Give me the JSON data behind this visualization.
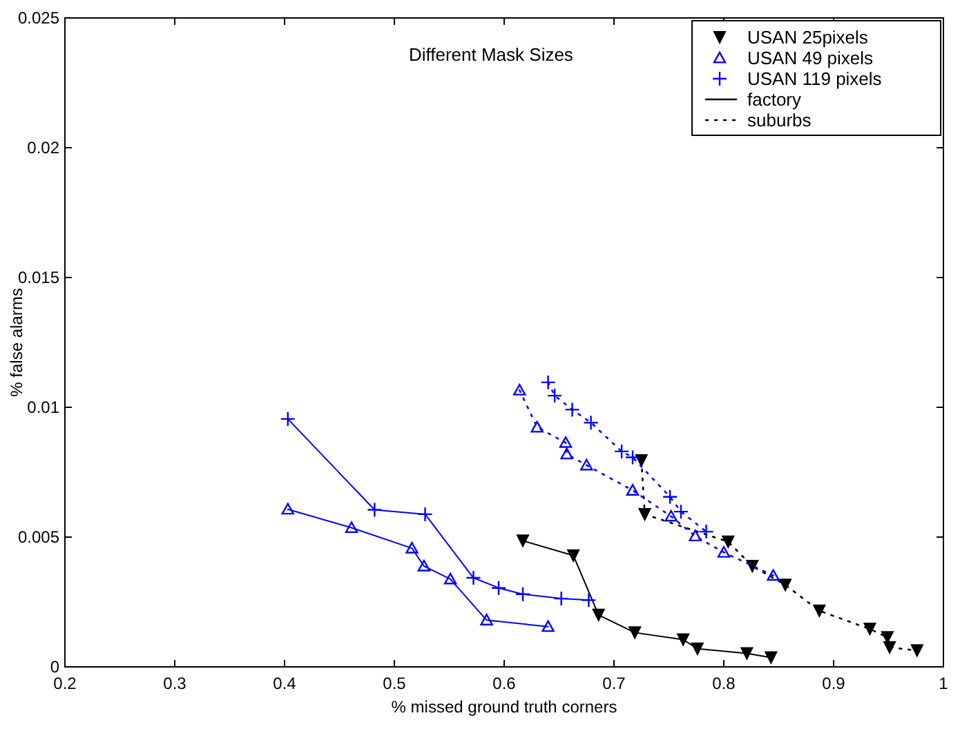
{
  "chart_data": {
    "type": "line",
    "title": "Different Mask Sizes",
    "xlabel": "% missed ground truth corners",
    "ylabel": "% false alarms",
    "xlim": [
      0.2,
      1
    ],
    "xticks": [
      0.2,
      0.3,
      0.4,
      0.5,
      0.6,
      0.7,
      0.8,
      0.9,
      1
    ],
    "ylim": [
      0,
      0.025
    ],
    "yticks": [
      0,
      0.005,
      0.01,
      0.015,
      0.02,
      0.025
    ],
    "grid": false,
    "legend": "top right",
    "annotations": [
      "factory",
      "suburbs"
    ],
    "series": [
      {
        "name": "USAN 25pixels",
        "color": "#000000",
        "marker": "triangle-down",
        "line_style": "solid",
        "x": [
          0.617,
          0.663,
          0.686,
          0.719,
          0.763,
          0.776,
          0.821,
          0.843
        ],
        "values": [
          0.00486,
          0.00429,
          0.002,
          0.00132,
          0.00105,
          0.0007,
          0.00052,
          0.00036
        ]
      },
      {
        "name": "USAN 49 pixels",
        "color": "#0000ff",
        "marker": "triangle",
        "line_style": "solid",
        "x": [
          0.403,
          0.461,
          0.516,
          0.527,
          0.551,
          0.584,
          0.64
        ],
        "values": [
          0.00607,
          0.00536,
          0.00457,
          0.00388,
          0.00338,
          0.0018,
          0.00155
        ]
      },
      {
        "name": "USAN 119 pixels",
        "color": "#0000ff",
        "marker": "cross",
        "line_style": "solid",
        "x": [
          0.403,
          0.482,
          0.528,
          0.572,
          0.595,
          0.617,
          0.652,
          0.677
        ],
        "values": [
          0.00955,
          0.00605,
          0.00588,
          0.00343,
          0.00304,
          0.0028,
          0.00263,
          0.00257
        ]
      },
      {
        "color": "#000000",
        "marker": "triangle-down",
        "line_style": "dotted",
        "x": [
          0.725,
          0.728,
          0.804,
          0.826,
          0.856,
          0.887,
          0.933,
          0.949,
          0.951,
          0.976
        ],
        "values": [
          0.00795,
          0.00588,
          0.00482,
          0.00388,
          0.00316,
          0.00216,
          0.00146,
          0.00114,
          0.00075,
          0.00063
        ]
      },
      {
        "color": "#0000ff",
        "marker": "triangle",
        "line_style": "dotted",
        "x": [
          0.614,
          0.63,
          0.656,
          0.657,
          0.675,
          0.717,
          0.752,
          0.774,
          0.8,
          0.845
        ],
        "values": [
          0.01066,
          0.00923,
          0.00864,
          0.0082,
          0.00777,
          0.0068,
          0.0058,
          0.00504,
          0.00441,
          0.00352
        ]
      },
      {
        "color": "#0000ff",
        "marker": "cross",
        "line_style": "dotted",
        "x": [
          0.64,
          0.646,
          0.662,
          0.679,
          0.707,
          0.717,
          0.751,
          0.761,
          0.784
        ],
        "values": [
          0.01096,
          0.01045,
          0.00991,
          0.00941,
          0.0083,
          0.00807,
          0.00655,
          0.00598,
          0.00521
        ]
      }
    ]
  }
}
